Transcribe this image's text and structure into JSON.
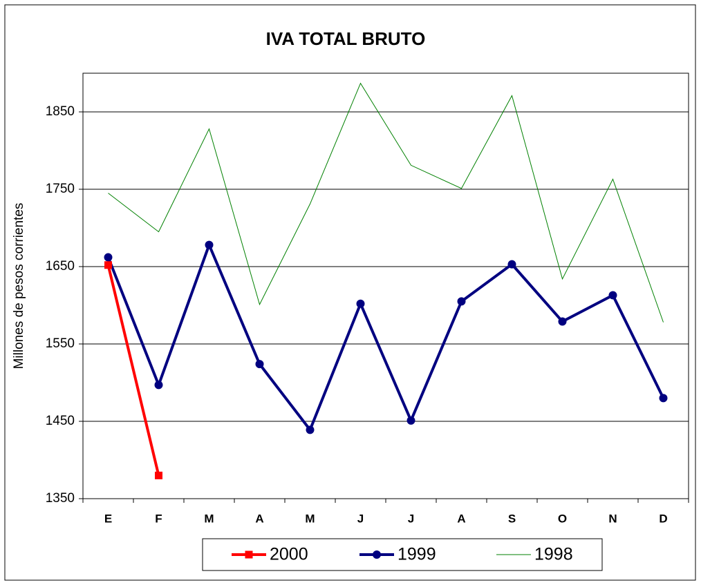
{
  "chart_data": {
    "type": "line",
    "title": "IVA TOTAL BRUTO",
    "y_label": "Millones de pesos corrientes",
    "categories": [
      "E",
      "F",
      "M",
      "A",
      "M",
      "J",
      "J",
      "A",
      "S",
      "O",
      "N",
      "D"
    ],
    "series": [
      {
        "name": "2000",
        "color": "#ff0000",
        "marker": "square",
        "values": [
          1652,
          1380,
          null,
          null,
          null,
          null,
          null,
          null,
          null,
          null,
          null,
          null
        ]
      },
      {
        "name": "1999",
        "color": "#000080",
        "marker": "circle",
        "values": [
          1662,
          1497,
          1678,
          1524,
          1439,
          1602,
          1451,
          1605,
          1653,
          1579,
          1613,
          1480
        ]
      },
      {
        "name": "1998",
        "color": "#008000",
        "marker": "none",
        "values": [
          1745,
          1695,
          1828,
          1601,
          1731,
          1887,
          1781,
          1751,
          1871,
          1634,
          1763,
          1578
        ]
      }
    ],
    "ylim": [
      1350,
      1900
    ],
    "yticks": [
      1350,
      1450,
      1550,
      1650,
      1750,
      1850
    ],
    "grid": true
  }
}
